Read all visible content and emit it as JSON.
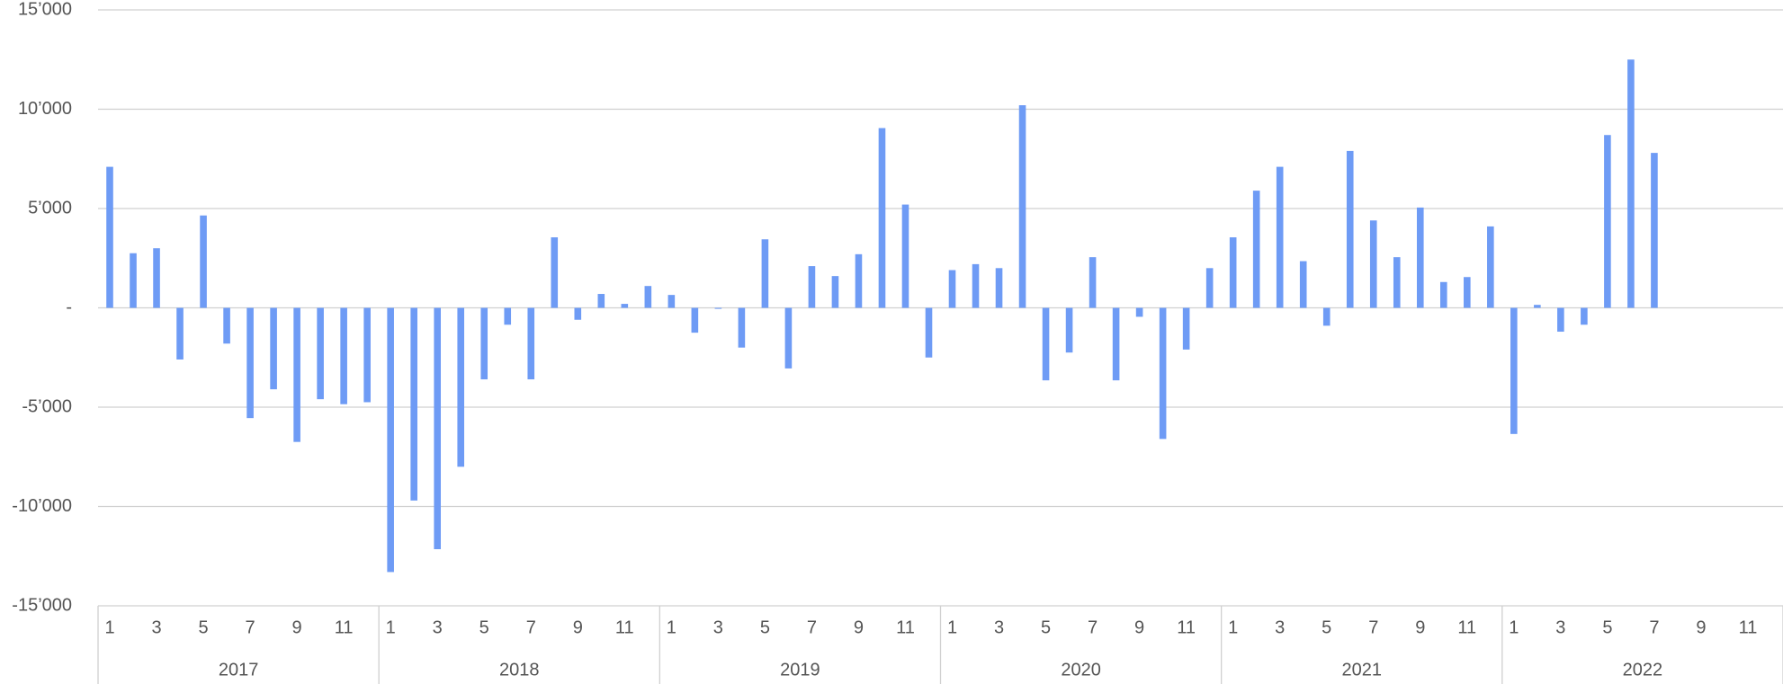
{
  "chart_data": {
    "type": "bar",
    "color": "#6e9bf5",
    "grid": true,
    "categories": [
      "1",
      null,
      "3",
      null,
      "5",
      null,
      "7",
      null,
      "9",
      null,
      "11",
      null,
      "1",
      null,
      "3",
      null,
      "5",
      null,
      "7",
      null,
      "9",
      null,
      "11",
      null,
      "1",
      null,
      "3",
      null,
      "5",
      null,
      "7",
      null,
      "9",
      null,
      "11",
      null,
      "1",
      null,
      "3",
      null,
      "5",
      null,
      "7",
      null,
      "9",
      null,
      "11",
      null,
      "1",
      null,
      "3",
      null,
      "5",
      null,
      "7",
      null,
      "9",
      null,
      "11",
      null,
      "1",
      null,
      "3",
      null,
      "5",
      null,
      "7",
      null,
      "9",
      null,
      "11",
      null
    ],
    "groups": [
      "2017",
      "2018",
      "2019",
      "2020",
      "2021",
      "2022"
    ],
    "values": [
      7100,
      2750,
      3000,
      -2600,
      4650,
      -1800,
      -5550,
      -4100,
      -6750,
      -4600,
      -4850,
      -4750,
      -13300,
      -9700,
      -12150,
      -8000,
      -3600,
      -850,
      -3600,
      3550,
      -600,
      700,
      200,
      1100,
      650,
      -1250,
      -50,
      -2000,
      3450,
      -3050,
      2100,
      1600,
      2700,
      9050,
      5200,
      -2500,
      1900,
      2200,
      2000,
      10200,
      -3650,
      -2250,
      2550,
      -3650,
      -450,
      -6600,
      -2100,
      2000,
      3550,
      5900,
      7100,
      2350,
      -900,
      7900,
      4400,
      2550,
      5050,
      1300,
      1550,
      4100,
      -6350,
      150,
      -1200,
      -850,
      8700,
      12500,
      7800,
      null,
      null,
      null,
      null,
      null
    ],
    "ylim": [
      -15000,
      15000
    ],
    "yticks": [
      {
        "value": -15000,
        "label": "-15’000"
      },
      {
        "value": -10000,
        "label": "-10’000"
      },
      {
        "value": -5000,
        "label": "-5’000"
      },
      {
        "value": 0,
        "label": "-"
      },
      {
        "value": 5000,
        "label": "5’000"
      },
      {
        "value": 10000,
        "label": "10’000"
      },
      {
        "value": 15000,
        "label": "15’000"
      }
    ]
  }
}
